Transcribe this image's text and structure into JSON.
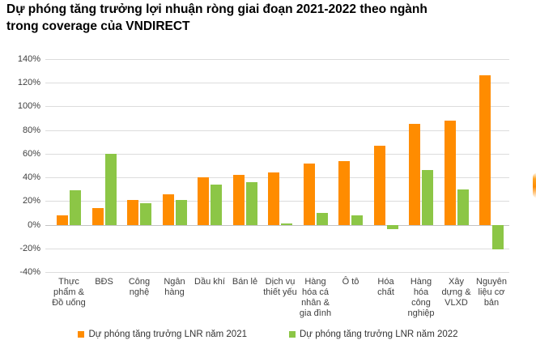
{
  "title": "Dự phóng tăng trưởng lợi nhuận ròng giai đoạn 2021-2022 theo ngành trong coverage của VNDIRECT",
  "colors": {
    "series_2021": "#FF8C00",
    "series_2022": "#8CC646",
    "gridline": "#DCDCDC",
    "axis_text": "#3F3F3F",
    "title_text": "#000000",
    "background": "#FFFFFF"
  },
  "chart_data": {
    "type": "bar",
    "title": "Dự phóng tăng trưởng lợi nhuận ròng giai đoạn 2021-2022 theo ngành trong coverage của VNDIRECT",
    "categories": [
      "Thực\nphẩm &\nĐồ uống",
      "BĐS",
      "Công\nnghệ",
      "Ngân\nhàng",
      "Dầu khí",
      "Bán lẻ",
      "Dịch vụ\nthiết yếu",
      "Hàng\nhóa cá\nnhân &\ngia đình",
      "Ô tô",
      "Hóa\nchất",
      "Hàng\nhóa\ncông\nnghiệp",
      "Xây\ndựng &\nVLXD",
      "Nguyên\nliệu cơ\nbản"
    ],
    "series": [
      {
        "name": "Dự phóng tăng trưởng LNR năm 2021",
        "color": "#FF8C00",
        "values": [
          8,
          14,
          21,
          26,
          40,
          42,
          44,
          52,
          54,
          67,
          85,
          88,
          126
        ]
      },
      {
        "name": "Dự phóng tăng trưởng LNR năm 2022",
        "color": "#8CC646",
        "values": [
          29,
          60,
          18,
          21,
          34,
          36,
          1,
          10,
          8,
          -4,
          46,
          30,
          -21
        ]
      }
    ],
    "xlabel": "",
    "ylabel": "",
    "ylim": [
      -40,
      140
    ],
    "ytick_step": 20,
    "ytick_labels": [
      "140%",
      "120%",
      "100%",
      "80%",
      "60%",
      "40%",
      "20%",
      "0%",
      "-20%",
      "-40%"
    ],
    "grid": true,
    "legend_position": "bottom"
  }
}
